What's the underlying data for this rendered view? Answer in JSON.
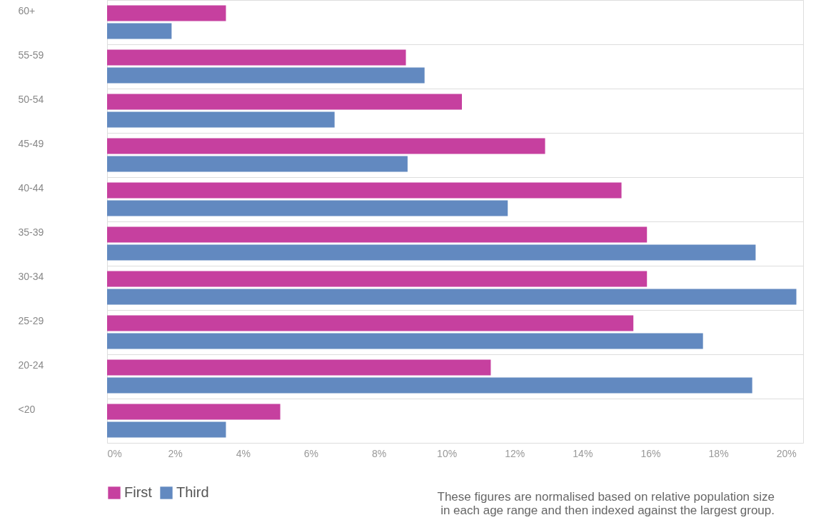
{
  "chart_data": {
    "type": "bar",
    "orientation": "horizontal",
    "categories": [
      "60+",
      "55-59",
      "50-54",
      "45-49",
      "40-44",
      "35-39",
      "30-34",
      "25-29",
      "20-24",
      "<20"
    ],
    "series": [
      {
        "name": "First",
        "color": "#c6409f",
        "values": [
          3.5,
          8.8,
          10.45,
          12.9,
          15.15,
          15.9,
          15.9,
          15.5,
          11.3,
          5.1
        ]
      },
      {
        "name": "Third",
        "color": "#6289c0",
        "values": [
          1.9,
          9.35,
          6.7,
          8.85,
          11.8,
          19.1,
          20.3,
          17.55,
          19.0,
          3.5
        ]
      }
    ],
    "xlim": [
      0,
      20.5
    ],
    "xticks": [
      {
        "value": 0,
        "label": "0%"
      },
      {
        "value": 2,
        "label": "2%"
      },
      {
        "value": 4,
        "label": "4%"
      },
      {
        "value": 6,
        "label": "6%"
      },
      {
        "value": 8,
        "label": "8%"
      },
      {
        "value": 10,
        "label": "10%"
      },
      {
        "value": 12,
        "label": "12%"
      },
      {
        "value": 14,
        "label": "14%"
      },
      {
        "value": 16,
        "label": "16%"
      },
      {
        "value": 18,
        "label": "18%"
      },
      {
        "value": 20,
        "label": "20%"
      }
    ],
    "grid": "y",
    "legend": "bottom",
    "annotations": [
      "These figures are normalised based on relative population size",
      "in each age range and then indexed against the largest group."
    ]
  }
}
